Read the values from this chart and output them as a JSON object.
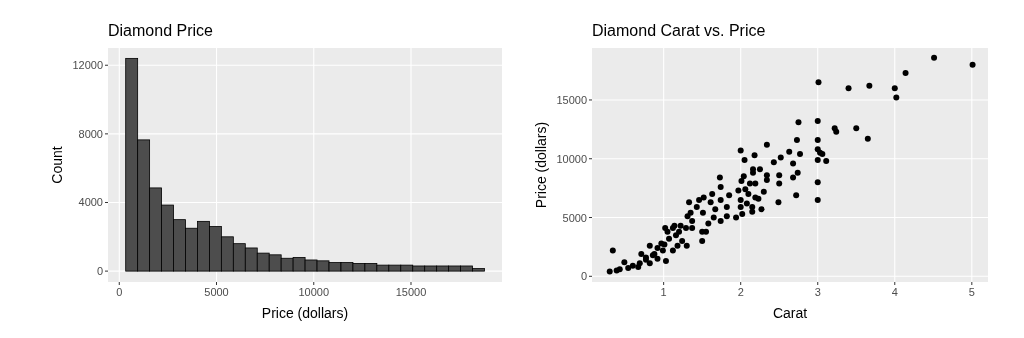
{
  "chart_data": [
    {
      "type": "histogram",
      "title": "Diamond Price",
      "xlabel": "Price (dollars)",
      "ylabel": "Count",
      "color": "#4d4d4d",
      "bins": [
        330,
        945,
        1560,
        2175,
        2790,
        3405,
        4020,
        4635,
        5250,
        5865,
        6480,
        7095,
        7710,
        8325,
        8940,
        9555,
        10170,
        10785,
        11400,
        12015,
        12630,
        13245,
        13860,
        14475,
        15090,
        15705,
        16320,
        16935,
        17550,
        18165,
        18780
      ],
      "values": [
        12400,
        7650,
        4850,
        3850,
        3000,
        2500,
        2900,
        2600,
        2000,
        1600,
        1350,
        1050,
        950,
        750,
        800,
        650,
        600,
        500,
        500,
        450,
        450,
        350,
        350,
        350,
        300,
        300,
        300,
        300,
        300,
        150
      ],
      "xlim": [
        -580,
        19680
      ],
      "ylim": [
        -634,
        13005
      ],
      "xticks": [
        0,
        5000,
        10000,
        15000
      ],
      "yticks": [
        0,
        4000,
        8000,
        12000
      ],
      "grid": true
    },
    {
      "type": "scatter",
      "title": "Diamond Carat vs. Price",
      "xlabel": "Carat",
      "ylabel": "Price (dollars)",
      "marker": "circle",
      "grid": true,
      "xlim": [
        0.07,
        5.21
      ],
      "ylim": [
        -485,
        19420
      ],
      "xticks": [
        1,
        2,
        3,
        4,
        5
      ],
      "yticks": [
        0,
        5000,
        10000,
        15000
      ],
      "color": "#000000",
      "x": [
        4.51,
        5.01,
        4.14,
        3.01,
        3.4,
        3.67,
        4.0,
        4.02,
        2.75,
        3.0,
        3.22,
        3.24,
        3.5,
        3.65,
        3.0,
        2.73,
        2.34,
        3.0,
        3.03,
        3.06,
        3.11,
        3.0,
        2.77,
        2.63,
        2.52,
        2.43,
        2.68,
        2.74,
        2.68,
        2.5,
        2.5,
        3.0,
        2.72,
        2.49,
        3.0,
        2.34,
        2.34,
        2.25,
        2.16,
        2.18,
        2.0,
        2.05,
        2.16,
        2.01,
        2.04,
        2.12,
        2.19,
        2.3,
        2.19,
        2.27,
        2.15,
        2.02,
        1.94,
        2.0,
        2.08,
        2.23,
        1.85,
        1.82,
        1.82,
        1.73,
        1.74,
        1.74,
        1.74,
        1.63,
        1.67,
        1.58,
        1.52,
        1.51,
        1.5,
        1.5,
        1.43,
        1.33,
        1.37,
        1.31,
        1.29,
        1.3,
        1.2,
        1.18,
        1.14,
        1.07,
        1.02,
        1.01,
        1.03,
        0.99,
        0.92,
        0.82,
        0.86,
        0.77,
        0.71,
        0.69,
        0.6,
        0.49,
        0.43,
        0.34,
        0.3,
        0.39,
        0.54,
        0.67,
        0.82,
        0.92,
        1.12,
        1.24,
        1.37,
        1.55,
        1.65,
        1.16,
        0.97,
        0.88,
        0.77,
        1.12,
        1.05,
        1.22,
        1.35,
        1.46,
        1.61,
        1.97,
        2.06,
        2.0,
        2.1,
        2.15
      ],
      "values": [
        18600,
        18000,
        17300,
        16500,
        16000,
        16200,
        16000,
        15200,
        13100,
        13200,
        12600,
        12300,
        12600,
        11700,
        11600,
        11600,
        11200,
        10800,
        10500,
        10400,
        9800,
        9900,
        10400,
        10600,
        10100,
        9700,
        9600,
        8800,
        8400,
        8600,
        7900,
        8000,
        6900,
        6300,
        6500,
        8600,
        8200,
        9100,
        9100,
        10300,
        10700,
        9900,
        8800,
        8100,
        8500,
        7900,
        7900,
        7200,
        6700,
        5700,
        5500,
        5300,
        5000,
        6500,
        6200,
        6600,
        6900,
        5900,
        5100,
        8400,
        7600,
        6500,
        4700,
        7000,
        5700,
        4500,
        6700,
        5400,
        3800,
        3000,
        5900,
        6300,
        4700,
        5100,
        4100,
        2600,
        3800,
        2600,
        4300,
        3200,
        4100,
        2700,
        1300,
        2200,
        2400,
        2600,
        1800,
        1400,
        1900,
        1100,
        900,
        1200,
        600,
        2200,
        400,
        500,
        700,
        800,
        1100,
        1500,
        2200,
        3000,
        4100,
        3800,
        5000,
        3500,
        2800,
        1900,
        1600,
        4100,
        3800,
        4300,
        5400,
        6500,
        6300,
        7300,
        7400,
        5900,
        7000,
        5900
      ]
    }
  ]
}
